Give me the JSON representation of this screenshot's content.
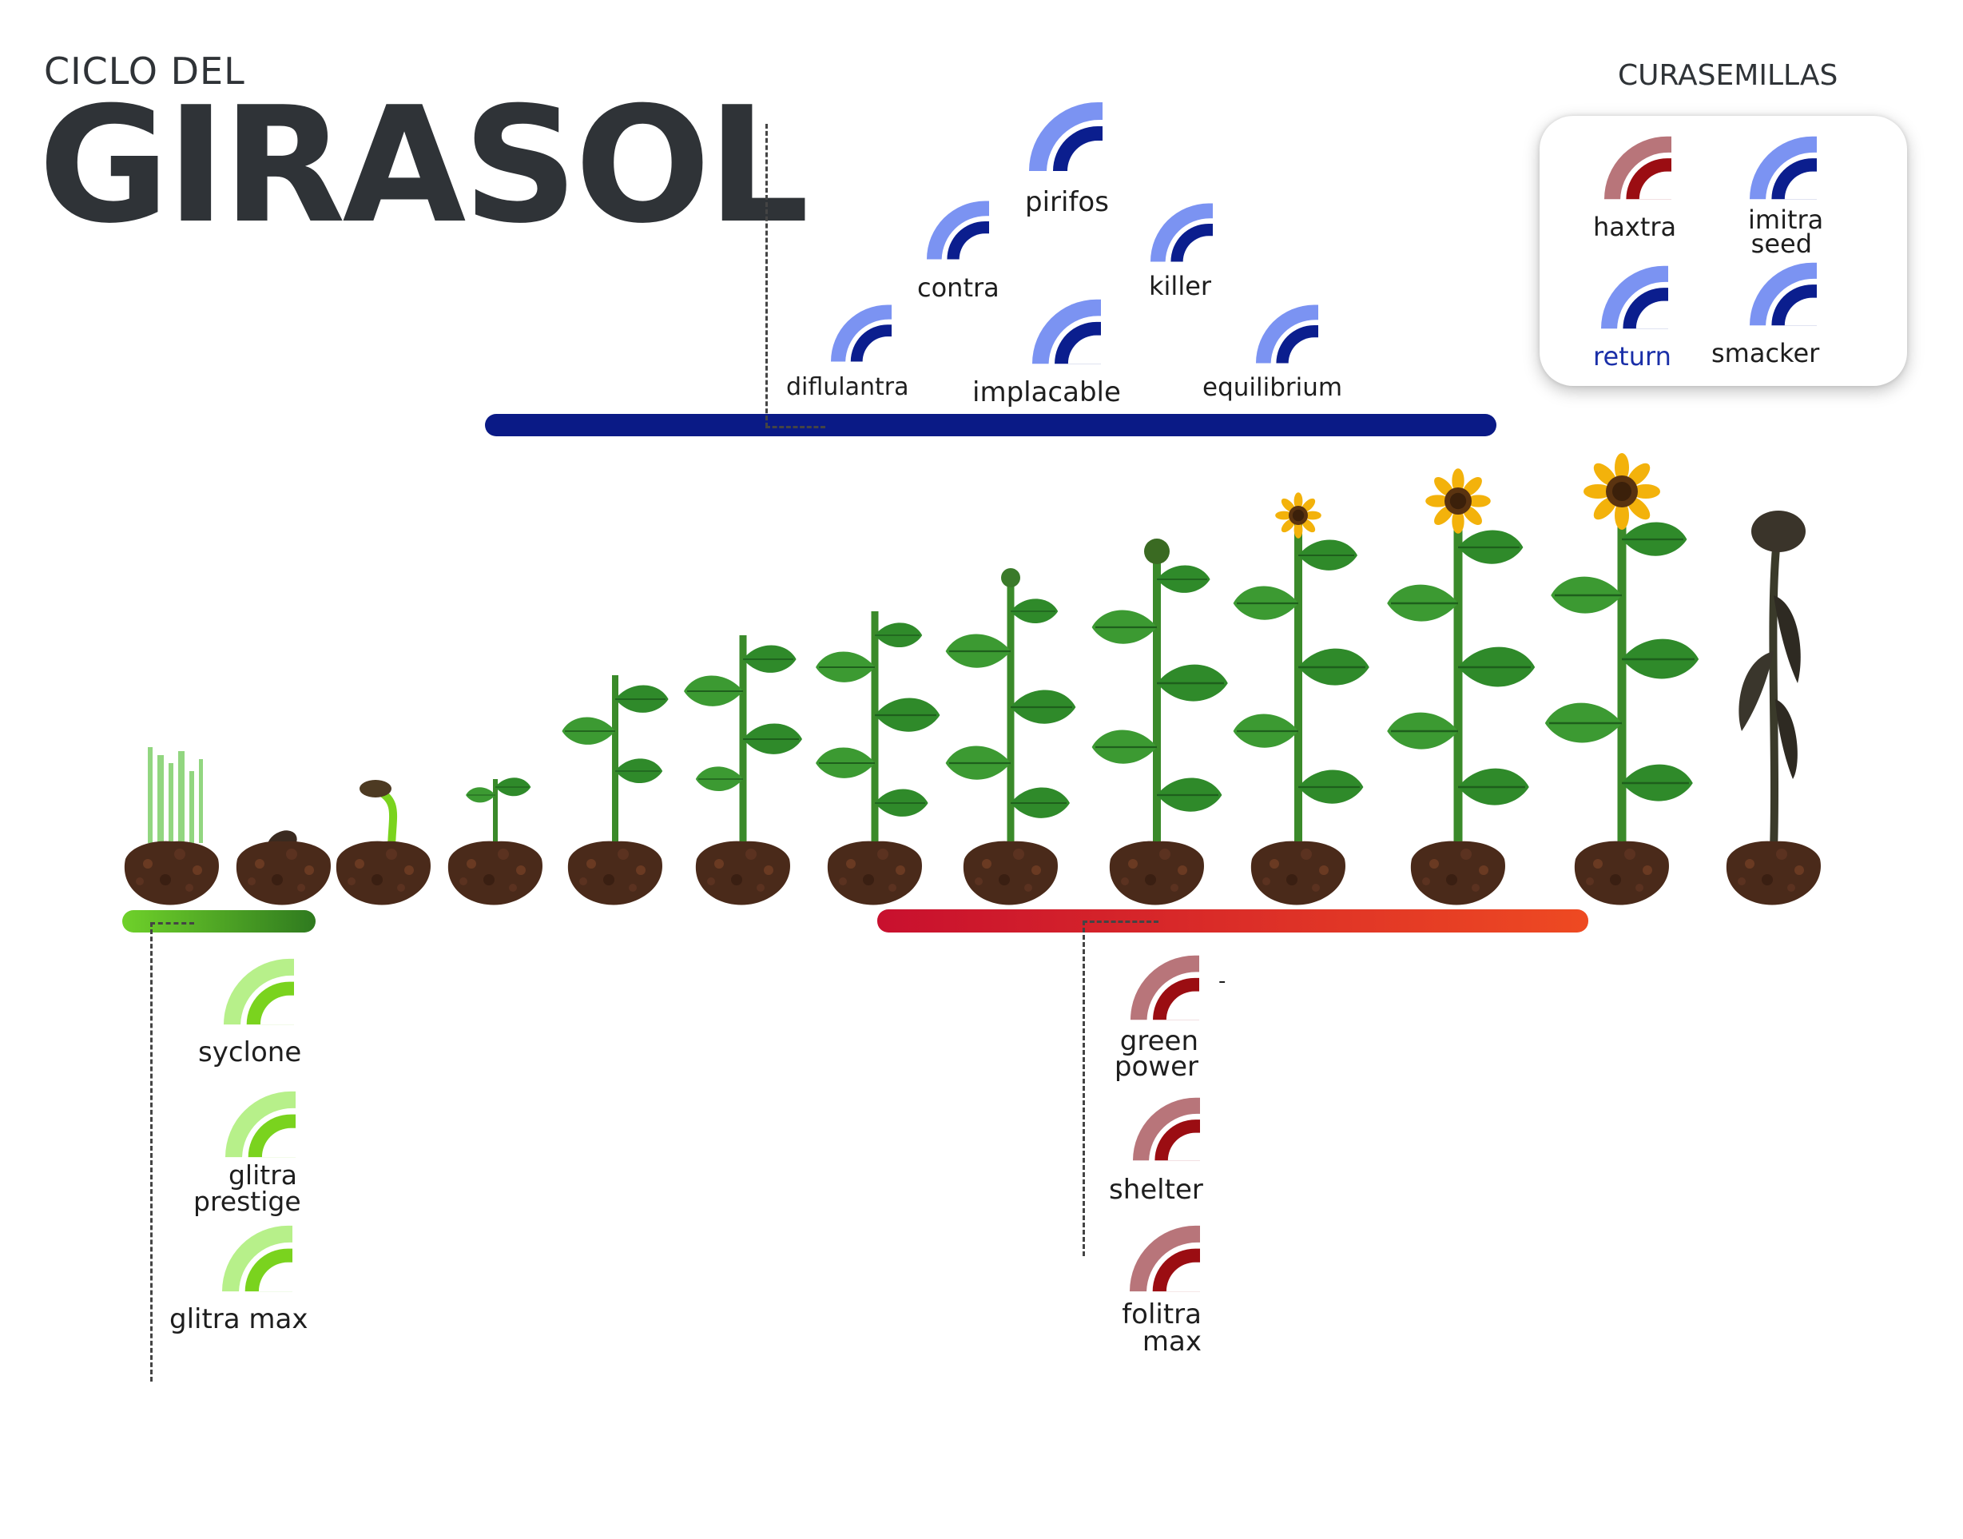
{
  "title": {
    "small": "CICLO DEL",
    "big": "GIRASOL"
  },
  "curasemillas": {
    "title": "CURASEMILLAS",
    "items": [
      {
        "label": "haxtra",
        "color": "red"
      },
      {
        "label": "imitra seed",
        "color": "blue"
      },
      {
        "label": "return",
        "color": "blue"
      },
      {
        "label": "smacker",
        "color": "blue"
      }
    ]
  },
  "insecticides": {
    "items": [
      {
        "label": "pirifos",
        "color": "blue"
      },
      {
        "label": "contra",
        "color": "blue"
      },
      {
        "label": "killer",
        "color": "blue"
      },
      {
        "label": "diflulantra",
        "color": "blue"
      },
      {
        "label": "implacable",
        "color": "blue"
      },
      {
        "label": "equilibrium",
        "color": "blue"
      }
    ]
  },
  "herbicides": {
    "items": [
      {
        "label": "syclone",
        "color": "green"
      },
      {
        "label": "glitra prestige",
        "color": "green"
      },
      {
        "label": "glitra max",
        "color": "green"
      }
    ]
  },
  "fungicides": {
    "items": [
      {
        "label": "green power",
        "color": "red"
      },
      {
        "label": "shelter",
        "color": "red"
      },
      {
        "label": "folitra max",
        "color": "red"
      }
    ],
    "dash_mark": "-"
  },
  "colors": {
    "blue_dark": "#0b1e8e",
    "blue_light": "#7b93f2",
    "green_dark": "#7ad31e",
    "green_light": "#b7f08a",
    "red_dark": "#9b0d12",
    "red_light": "#b8757a",
    "bar_blue": "#0a1a86",
    "bar_green_start": "#6fd12a",
    "bar_green_end": "#2f7a1f",
    "bar_red_start": "#c8102e",
    "bar_red_end": "#ee4a22",
    "soil": "#4a2a1a",
    "leaf": "#2f8a2a",
    "petal": "#f3b20b"
  }
}
